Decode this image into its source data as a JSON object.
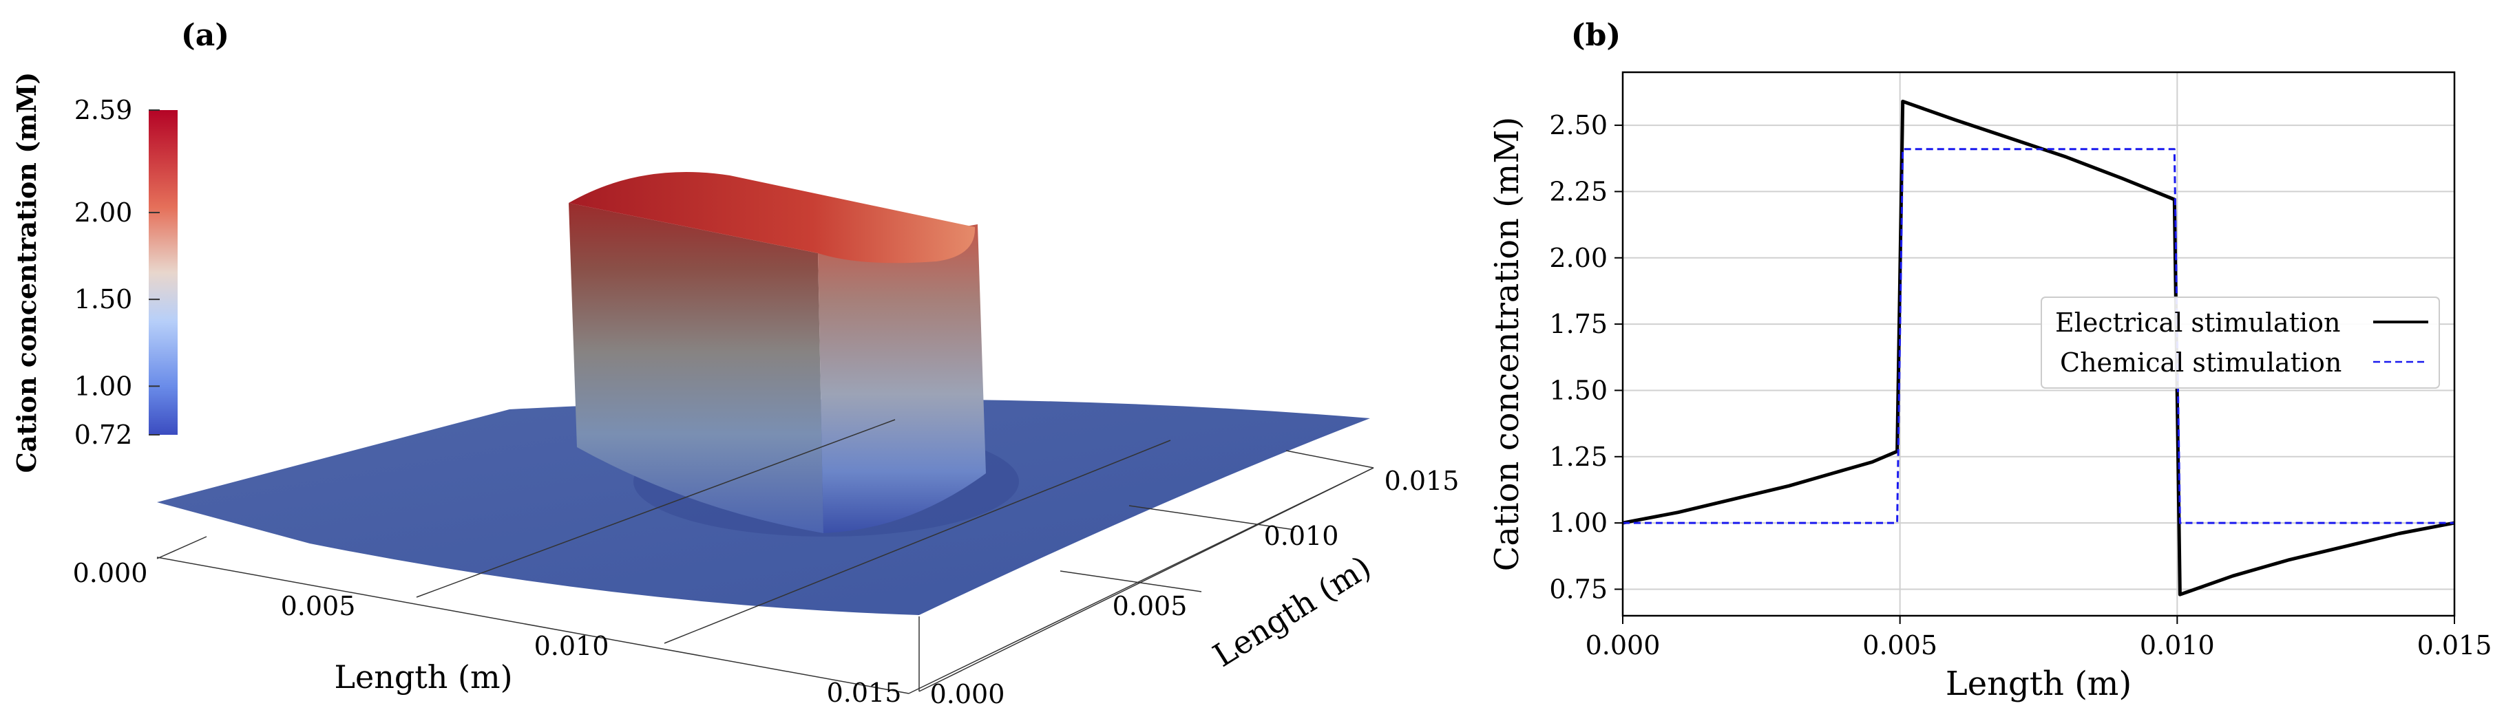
{
  "colors": {
    "surface_base": "#4a62a6",
    "surface_top": "#b6222c",
    "electrical_line": "#000000",
    "chemical_line": "#1a1aee",
    "grid": "#d0d0d0"
  },
  "chart_data": [
    {
      "panel_label": "(a)",
      "type": "surface",
      "colorbar": {
        "label": "Cation concentration (mM)",
        "min": 0.72,
        "max": 2.59,
        "ticks": [
          "2.59",
          "2.00",
          "1.50",
          "1.00",
          "0.72"
        ],
        "tick_values": [
          2.59,
          2.0,
          1.5,
          1.0,
          0.72
        ]
      },
      "x_axis": {
        "label": "Length (m)",
        "ticks": [
          "0.000",
          "0.005",
          "0.010",
          "0.015"
        ]
      },
      "y_axis": {
        "label": "Length (m)",
        "ticks": [
          "0.000",
          "0.005",
          "0.010",
          "0.015"
        ]
      },
      "description_range": {
        "x": [
          0,
          0.015
        ],
        "y": [
          0,
          0.015
        ]
      },
      "block_region": {
        "x": [
          0.005,
          0.01
        ],
        "y": [
          0.005,
          0.01
        ],
        "value_peak": 2.59
      }
    },
    {
      "panel_label": "(b)",
      "type": "line",
      "xlabel": "Length (m)",
      "ylabel": "Cation concentration (mM)",
      "xlim": [
        0.0,
        0.015
      ],
      "ylim": [
        0.65,
        2.7
      ],
      "x_ticks": [
        0.0,
        0.005,
        0.01,
        0.015
      ],
      "x_tick_labels": [
        "0.000",
        "0.005",
        "0.010",
        "0.015"
      ],
      "y_ticks": [
        0.75,
        1.0,
        1.25,
        1.5,
        1.75,
        2.0,
        2.25,
        2.5
      ],
      "y_tick_labels": [
        "0.75",
        "1.00",
        "1.25",
        "1.50",
        "1.75",
        "2.00",
        "2.25",
        "2.50"
      ],
      "grid": true,
      "legend_position": "center-right",
      "series": [
        {
          "name": "Electrical stimulation",
          "style": "solid",
          "x": [
            0.0,
            0.001,
            0.002,
            0.003,
            0.004,
            0.0045,
            0.00495,
            0.00505,
            0.006,
            0.007,
            0.008,
            0.009,
            0.00995,
            0.01005,
            0.011,
            0.012,
            0.013,
            0.014,
            0.015
          ],
          "y": [
            1.0,
            1.04,
            1.09,
            1.14,
            1.2,
            1.23,
            1.27,
            2.59,
            2.52,
            2.45,
            2.38,
            2.3,
            2.22,
            0.73,
            0.8,
            0.86,
            0.91,
            0.96,
            1.0
          ]
        },
        {
          "name": "Chemical stimulation",
          "style": "dashed",
          "x": [
            0.0,
            0.00495,
            0.00505,
            0.00995,
            0.01005,
            0.015
          ],
          "y": [
            1.0,
            1.0,
            2.41,
            2.41,
            1.0,
            1.0
          ]
        }
      ]
    }
  ]
}
